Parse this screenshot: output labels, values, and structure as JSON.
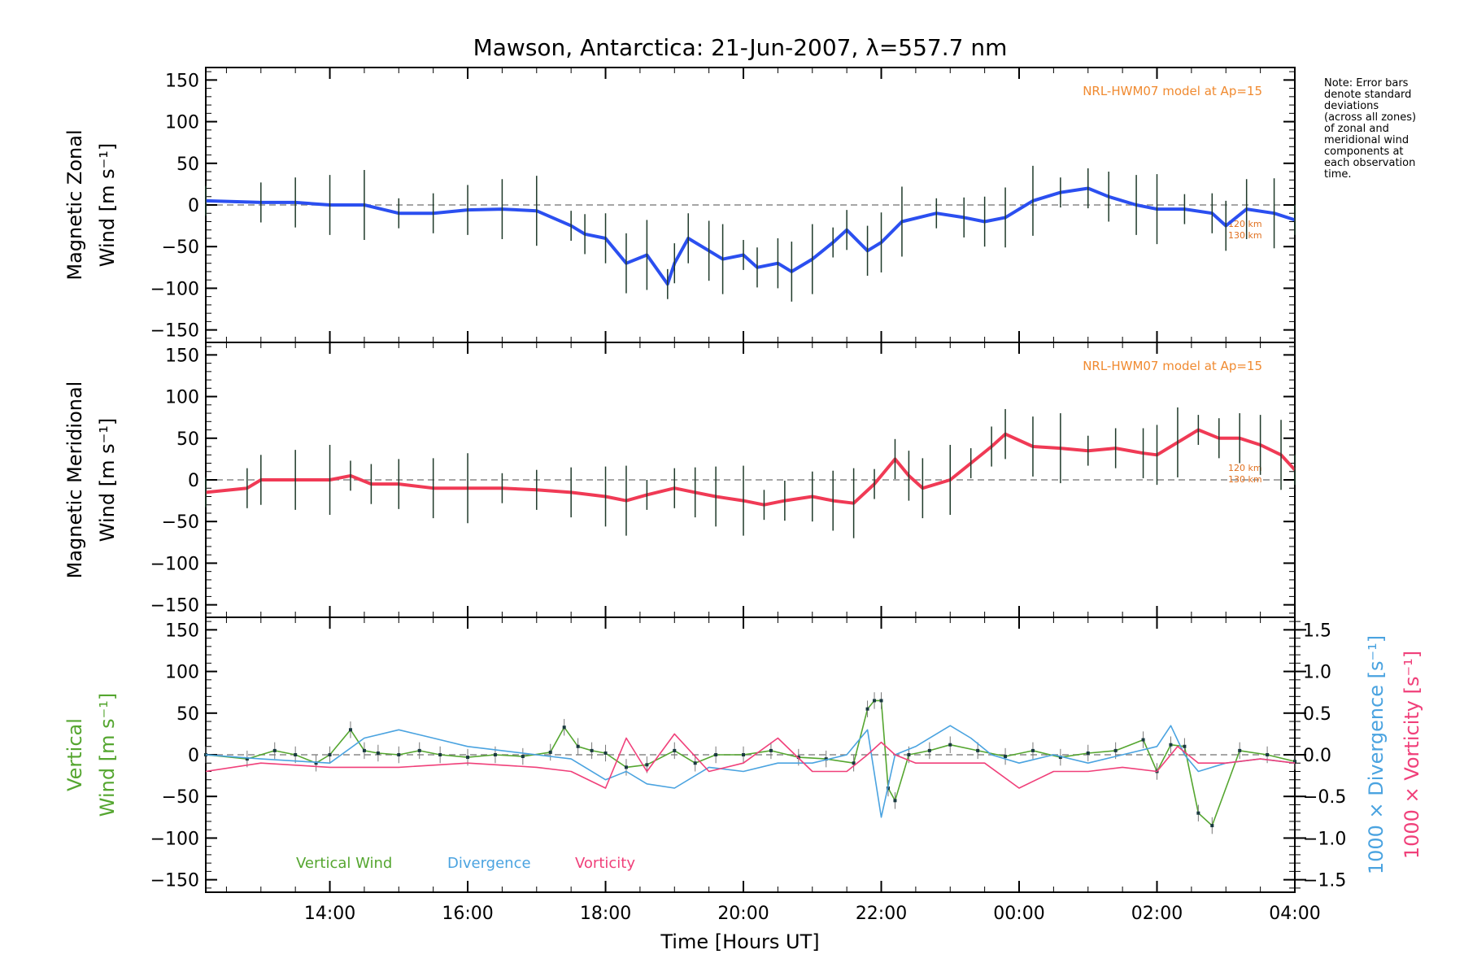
{
  "chart_data": {
    "type": "line",
    "title": "Mawson, Antarctica: 21-Jun-2007, λ=557.7 nm",
    "xlabel": "Time [Hours UT]",
    "x_ticks": [
      "14:00",
      "16:00",
      "18:00",
      "20:00",
      "22:00",
      "00:00",
      "02:00",
      "04:00"
    ],
    "x_range_hours_ut": [
      12.2,
      28.0
    ],
    "note": [
      "Note: Error bars",
      "denote standard",
      "deviations",
      "(across all zones)",
      "of zonal and",
      "meridional wind",
      "components at",
      "each observation",
      "time."
    ],
    "panels": [
      {
        "id": "zonal",
        "ylabel_line1": "Magnetic Zonal",
        "ylabel_line2": "Wind [m s⁻¹]",
        "ylim": [
          -165,
          165
        ],
        "y_ticks": [
          "150",
          "100",
          "50",
          "0",
          "−50",
          "−100",
          "−150"
        ],
        "model_label": "NRL-HWM07 model at Ap=15",
        "model_level_labels": [
          "120 km",
          "130 km"
        ],
        "series": [
          {
            "name": "Zonal wind (mean)",
            "color": "#2b4ff0",
            "x": [
              12.2,
              13.0,
              13.5,
              14.0,
              14.5,
              15.0,
              15.5,
              16.0,
              16.5,
              17.0,
              17.5,
              17.7,
              18.0,
              18.3,
              18.6,
              18.9,
              19.0,
              19.2,
              19.5,
              19.7,
              20.0,
              20.2,
              20.5,
              20.7,
              21.0,
              21.3,
              21.5,
              21.8,
              22.0,
              22.3,
              22.8,
              23.2,
              23.5,
              23.8,
              24.2,
              24.6,
              25.0,
              25.3,
              25.7,
              26.0,
              26.4,
              26.8,
              27.0,
              27.3,
              27.7,
              28.0
            ],
            "values": [
              5,
              3,
              3,
              0,
              0,
              -10,
              -10,
              -6,
              -5,
              -7,
              -25,
              -35,
              -40,
              -70,
              -60,
              -95,
              -70,
              -40,
              -55,
              -65,
              -60,
              -75,
              -70,
              -80,
              -65,
              -45,
              -30,
              -55,
              -45,
              -20,
              -10,
              -15,
              -20,
              -15,
              5,
              15,
              20,
              10,
              0,
              -5,
              -5,
              -10,
              -25,
              -5,
              -10,
              -18
            ]
          }
        ]
      },
      {
        "id": "meridional",
        "ylabel_line1": "Magnetic Meridional",
        "ylabel_line2": "Wind [m s⁻¹]",
        "ylim": [
          -165,
          165
        ],
        "y_ticks": [
          "150",
          "100",
          "50",
          "0",
          "−50",
          "−100",
          "−150"
        ],
        "model_label": "NRL-HWM07 model at Ap=15",
        "model_level_labels": [
          "120 km",
          "130 km"
        ],
        "series": [
          {
            "name": "Meridional wind (mean)",
            "color": "#f03a55",
            "x": [
              12.2,
              12.8,
              13.0,
              13.5,
              14.0,
              14.3,
              14.6,
              15.0,
              15.5,
              16.0,
              16.5,
              17.0,
              17.5,
              18.0,
              18.3,
              18.6,
              19.0,
              19.3,
              19.6,
              20.0,
              20.3,
              20.6,
              21.0,
              21.3,
              21.6,
              21.9,
              22.2,
              22.4,
              22.6,
              23.0,
              23.3,
              23.6,
              23.8,
              24.2,
              24.6,
              25.0,
              25.4,
              25.8,
              26.0,
              26.3,
              26.6,
              26.9,
              27.2,
              27.5,
              27.8,
              28.0
            ],
            "values": [
              -15,
              -10,
              0,
              0,
              0,
              5,
              -5,
              -5,
              -10,
              -10,
              -10,
              -12,
              -15,
              -20,
              -25,
              -18,
              -10,
              -15,
              -20,
              -25,
              -30,
              -25,
              -20,
              -25,
              -28,
              -5,
              25,
              5,
              -10,
              0,
              20,
              40,
              55,
              40,
              38,
              35,
              38,
              32,
              30,
              45,
              60,
              50,
              50,
              42,
              30,
              12
            ]
          }
        ]
      },
      {
        "id": "vertical",
        "ylabel_line1": "Vertical",
        "ylabel_line2": "Wind [m s⁻¹]",
        "ylim": [
          -165,
          165
        ],
        "y_ticks": [
          "150",
          "100",
          "50",
          "0",
          "−50",
          "−100",
          "−150"
        ],
        "right_axis": {
          "range": [
            -1.65,
            1.65
          ],
          "ticks": [
            "1.5",
            "1.0",
            "0.5",
            "0.0",
            "−0.5",
            "−1.0",
            "−1.5"
          ],
          "label_divergence": "1000 × Divergence [s⁻¹]",
          "label_vorticity": "1000 × Vorticity [s⁻¹]"
        },
        "legend": [
          "Vertical Wind",
          "Divergence",
          "Vorticity"
        ],
        "series": [
          {
            "name": "Vertical Wind",
            "color": "#55a630",
            "axis": "left",
            "x": [
              12.2,
              12.8,
              13.2,
              13.5,
              13.8,
              14.0,
              14.3,
              14.5,
              14.7,
              15.0,
              15.3,
              15.6,
              16.0,
              16.4,
              16.8,
              17.2,
              17.4,
              17.6,
              17.8,
              18.0,
              18.3,
              18.6,
              19.0,
              19.3,
              19.6,
              20.0,
              20.4,
              20.8,
              21.2,
              21.6,
              21.8,
              21.9,
              22.0,
              22.1,
              22.2,
              22.4,
              22.7,
              23.0,
              23.4,
              23.8,
              24.2,
              24.6,
              25.0,
              25.4,
              25.8,
              26.0,
              26.2,
              26.4,
              26.6,
              26.8,
              27.2,
              27.6,
              28.0
            ],
            "values": [
              0,
              -5,
              5,
              0,
              -10,
              0,
              30,
              5,
              2,
              0,
              5,
              0,
              -3,
              0,
              -2,
              3,
              33,
              10,
              5,
              2,
              -15,
              -12,
              5,
              -10,
              0,
              0,
              5,
              -3,
              -5,
              -10,
              55,
              65,
              65,
              -40,
              -55,
              0,
              5,
              12,
              5,
              -2,
              5,
              -3,
              2,
              5,
              18,
              -20,
              12,
              10,
              -70,
              -85,
              5,
              0,
              -8
            ]
          },
          {
            "name": "Divergence",
            "color": "#4aa3e0",
            "axis": "right",
            "x": [
              12.2,
              13.0,
              14.0,
              14.5,
              15.0,
              15.5,
              16.0,
              16.5,
              17.0,
              17.5,
              18.0,
              18.3,
              18.6,
              19.0,
              19.5,
              20.0,
              20.5,
              21.0,
              21.5,
              21.8,
              22.0,
              22.2,
              22.5,
              23.0,
              23.3,
              23.6,
              24.0,
              24.5,
              25.0,
              25.5,
              26.0,
              26.2,
              26.4,
              26.6,
              27.0,
              27.5,
              28.0
            ],
            "values": [
              0.0,
              -0.05,
              -0.1,
              0.2,
              0.3,
              0.2,
              0.1,
              0.05,
              0.0,
              -0.05,
              -0.3,
              -0.2,
              -0.35,
              -0.4,
              -0.15,
              -0.2,
              -0.1,
              -0.1,
              0.0,
              0.3,
              -0.75,
              0.0,
              0.1,
              0.35,
              0.2,
              0.0,
              -0.1,
              0.0,
              -0.1,
              0.0,
              0.1,
              0.35,
              0.0,
              -0.2,
              -0.1,
              -0.05,
              -0.1
            ]
          },
          {
            "name": "Vorticity",
            "color": "#f0407a",
            "axis": "right",
            "x": [
              12.2,
              13.0,
              14.0,
              15.0,
              16.0,
              17.0,
              17.5,
              18.0,
              18.3,
              18.6,
              19.0,
              19.5,
              20.0,
              20.5,
              21.0,
              21.5,
              21.8,
              22.0,
              22.2,
              22.5,
              23.0,
              23.5,
              24.0,
              24.5,
              25.0,
              25.5,
              26.0,
              26.3,
              26.6,
              27.0,
              27.5,
              28.0
            ],
            "values": [
              -0.2,
              -0.1,
              -0.15,
              -0.15,
              -0.1,
              -0.15,
              -0.2,
              -0.4,
              0.2,
              -0.2,
              0.25,
              -0.2,
              -0.1,
              0.2,
              -0.2,
              -0.2,
              0.0,
              0.15,
              0.0,
              -0.1,
              -0.1,
              -0.1,
              -0.4,
              -0.2,
              -0.2,
              -0.15,
              -0.2,
              0.1,
              -0.1,
              -0.1,
              -0.05,
              -0.1
            ]
          }
        ]
      }
    ]
  }
}
